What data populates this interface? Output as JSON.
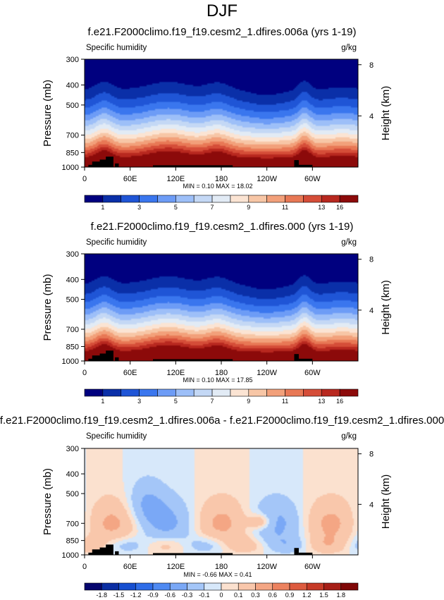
{
  "figure": {
    "title": "DJF"
  },
  "panels": [
    {
      "title": "f.e21.F2000climo.f19_f19.cesm2_1.dfires.006a (yrs 1-19)",
      "left_label": "Specific humidity",
      "right_label": "g/kg",
      "stats": "MIN =   0.10  MAX = 18.02"
    },
    {
      "title": "f.e21.F2000climo.f19_f19.cesm2_1.dfires.000 (yrs 1-19)",
      "left_label": "Specific humidity",
      "right_label": "g/kg",
      "stats": "MIN =   0.10  MAX = 17.85"
    },
    {
      "title": "f.e21.F2000climo.f19_f19.cesm2_1.dfires.006a - f.e21.F2000climo.f19_f19.cesm2_1.dfires.000",
      "left_label": "Specific humidity",
      "right_label": "g/kg",
      "stats": "MIN = -0.66  MAX =  0.41"
    }
  ],
  "chart_data": [
    {
      "type": "heatmap",
      "title": "f.e21.F2000climo.f19_f19.cesm2_1.dfires.006a (yrs 1-19)",
      "variable": "Specific humidity",
      "units": "g/kg",
      "xlabel": "",
      "ylabel": "Pressure (mb)",
      "y2label": "Height (km)",
      "x_ticks": [
        "0",
        "60E",
        "120E",
        "180",
        "120W",
        "60W"
      ],
      "y_ticks": [
        "300",
        "400",
        "500",
        "700",
        "850",
        "1000"
      ],
      "y2_ticks": [
        "8",
        "4"
      ],
      "min": 0.1,
      "max": 18.02,
      "colorbar_labels": [
        "1",
        "3",
        "5",
        "7",
        "9",
        "11",
        "13",
        "16"
      ],
      "colorbar_colors": [
        "#00007f",
        "#0a2fa8",
        "#1f55d6",
        "#3a76ee",
        "#6d9cf6",
        "#9dbff8",
        "#c4d8f5",
        "#e2ebf5",
        "#fbe4d3",
        "#f7c6a6",
        "#f2a07a",
        "#e87855",
        "#d54d38",
        "#b8281f",
        "#8c0a0a"
      ]
    },
    {
      "type": "heatmap",
      "title": "f.e21.F2000climo.f19_f19.cesm2_1.dfires.000 (yrs 1-19)",
      "variable": "Specific humidity",
      "units": "g/kg",
      "xlabel": "",
      "ylabel": "Pressure (mb)",
      "y2label": "Height (km)",
      "x_ticks": [
        "0",
        "60E",
        "120E",
        "180",
        "120W",
        "60W"
      ],
      "y_ticks": [
        "300",
        "400",
        "500",
        "700",
        "850",
        "1000"
      ],
      "y2_ticks": [
        "8",
        "4"
      ],
      "min": 0.1,
      "max": 17.85,
      "colorbar_labels": [
        "1",
        "3",
        "5",
        "7",
        "9",
        "11",
        "13",
        "16"
      ],
      "colorbar_colors": [
        "#00007f",
        "#0a2fa8",
        "#1f55d6",
        "#3a76ee",
        "#6d9cf6",
        "#9dbff8",
        "#c4d8f5",
        "#e2ebf5",
        "#fbe4d3",
        "#f7c6a6",
        "#f2a07a",
        "#e87855",
        "#d54d38",
        "#b8281f",
        "#8c0a0a"
      ]
    },
    {
      "type": "heatmap",
      "title": "f.e21.F2000climo.f19_f19.cesm2_1.dfires.006a - f.e21.F2000climo.f19_f19.cesm2_1.dfires.000",
      "variable": "Specific humidity",
      "units": "g/kg",
      "xlabel": "",
      "ylabel": "Pressure (mb)",
      "y2label": "Height (km)",
      "x_ticks": [
        "0",
        "60E",
        "120E",
        "180",
        "120W",
        "60W"
      ],
      "y_ticks": [
        "300",
        "400",
        "500",
        "700",
        "850",
        "1000"
      ],
      "y2_ticks": [
        "8",
        "4"
      ],
      "min": -0.66,
      "max": 0.41,
      "colorbar_labels": [
        "-1.8",
        "-1.5",
        "-1.2",
        "-0.9",
        "-0.6",
        "-0.3",
        "-0.1",
        "0",
        "0.1",
        "0.3",
        "0.6",
        "0.9",
        "1.2",
        "1.5",
        "1.8"
      ],
      "colorbar_colors": [
        "#06066e",
        "#0b2ea3",
        "#174fd0",
        "#2f6de8",
        "#4f8af2",
        "#7aa8f6",
        "#a4c6f8",
        "#d7e8fa",
        "#fbe1cf",
        "#f9c7ab",
        "#f4a684",
        "#ec825f",
        "#dd5b3f",
        "#c63a27",
        "#a61e17",
        "#7f0707"
      ]
    }
  ]
}
